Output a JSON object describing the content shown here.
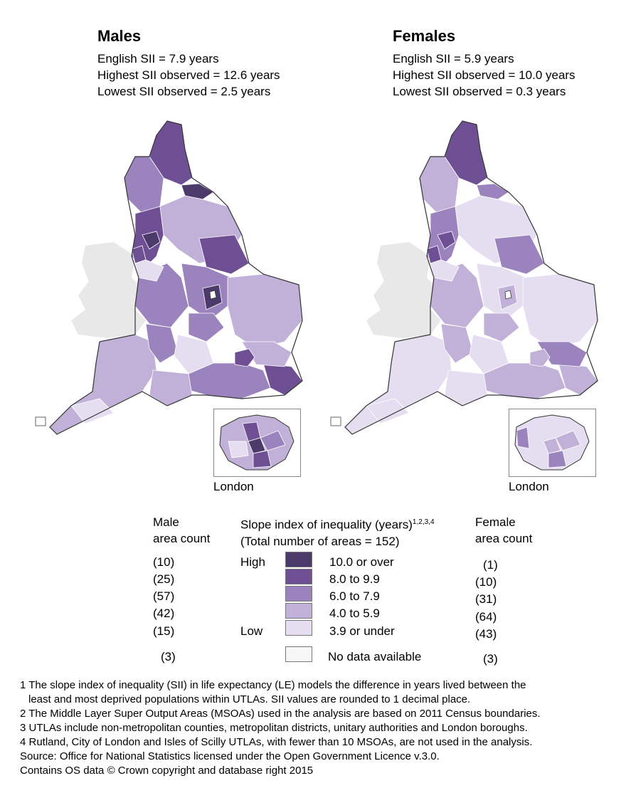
{
  "males": {
    "title": "Males",
    "stats": [
      "English SII = 7.9 years",
      "Highest SII observed = 12.6 years",
      "Lowest SII observed = 2.5 years"
    ],
    "inset_label": "London"
  },
  "females": {
    "title": "Females",
    "stats": [
      "English SII = 5.9 years",
      "Highest SII observed = 10.0 years",
      "Lowest SII observed = 0.3 years"
    ],
    "inset_label": "London"
  },
  "legend": {
    "male_header": [
      "Male",
      "area count"
    ],
    "female_header": [
      "Female",
      "area count"
    ],
    "title": "Slope index of inequality (years)",
    "title_sup": "1,2,3,4",
    "subtitle": "(Total number of areas = 152)",
    "high_label": "High",
    "low_label": "Low",
    "classes": [
      {
        "label": "10.0 or over",
        "color": "#4b3a6a",
        "male": "(10)",
        "female": "(1)"
      },
      {
        "label": "8.0 to 9.9",
        "color": "#6e4f94",
        "male": "(25)",
        "female": "(10)"
      },
      {
        "label": "6.0 to 7.9",
        "color": "#9b83bd",
        "male": "(57)",
        "female": "(31)"
      },
      {
        "label": "4.0 to 5.9",
        "color": "#c1b1d8",
        "male": "(42)",
        "female": "(64)"
      },
      {
        "label": "3.9 or under",
        "color": "#e5def0",
        "male": "(15)",
        "female": "(43)"
      }
    ],
    "no_data": {
      "label": "No data available",
      "color": "#f7f7f7",
      "male": "(3)",
      "female": "(3)"
    }
  },
  "footnotes": [
    "1 The slope index of inequality (SII) in life expectancy (LE) models the difference in years lived between the",
    "least and most deprived populations within UTLAs. SII values are rounded to 1 decimal place.",
    "2 The Middle Layer Super Output Areas (MSOAs) used in the analysis are based on 2011 Census boundaries.",
    "3 UTLAs include non-metropolitan counties, metropolitan districts, unitary authorities and London boroughs.",
    "4 Rutland, City of London and Isles of Scilly UTLAs, with fewer than 10 MSOAs, are not used in the analysis.",
    "Source: Office for National Statistics licensed under the Open Government Licence v.3.0.",
    "Contains OS data © Crown copyright and database right 2015"
  ],
  "colors": {
    "wales": "#e8e8e8",
    "border": "#333333",
    "inner_border": "#ffffff"
  }
}
